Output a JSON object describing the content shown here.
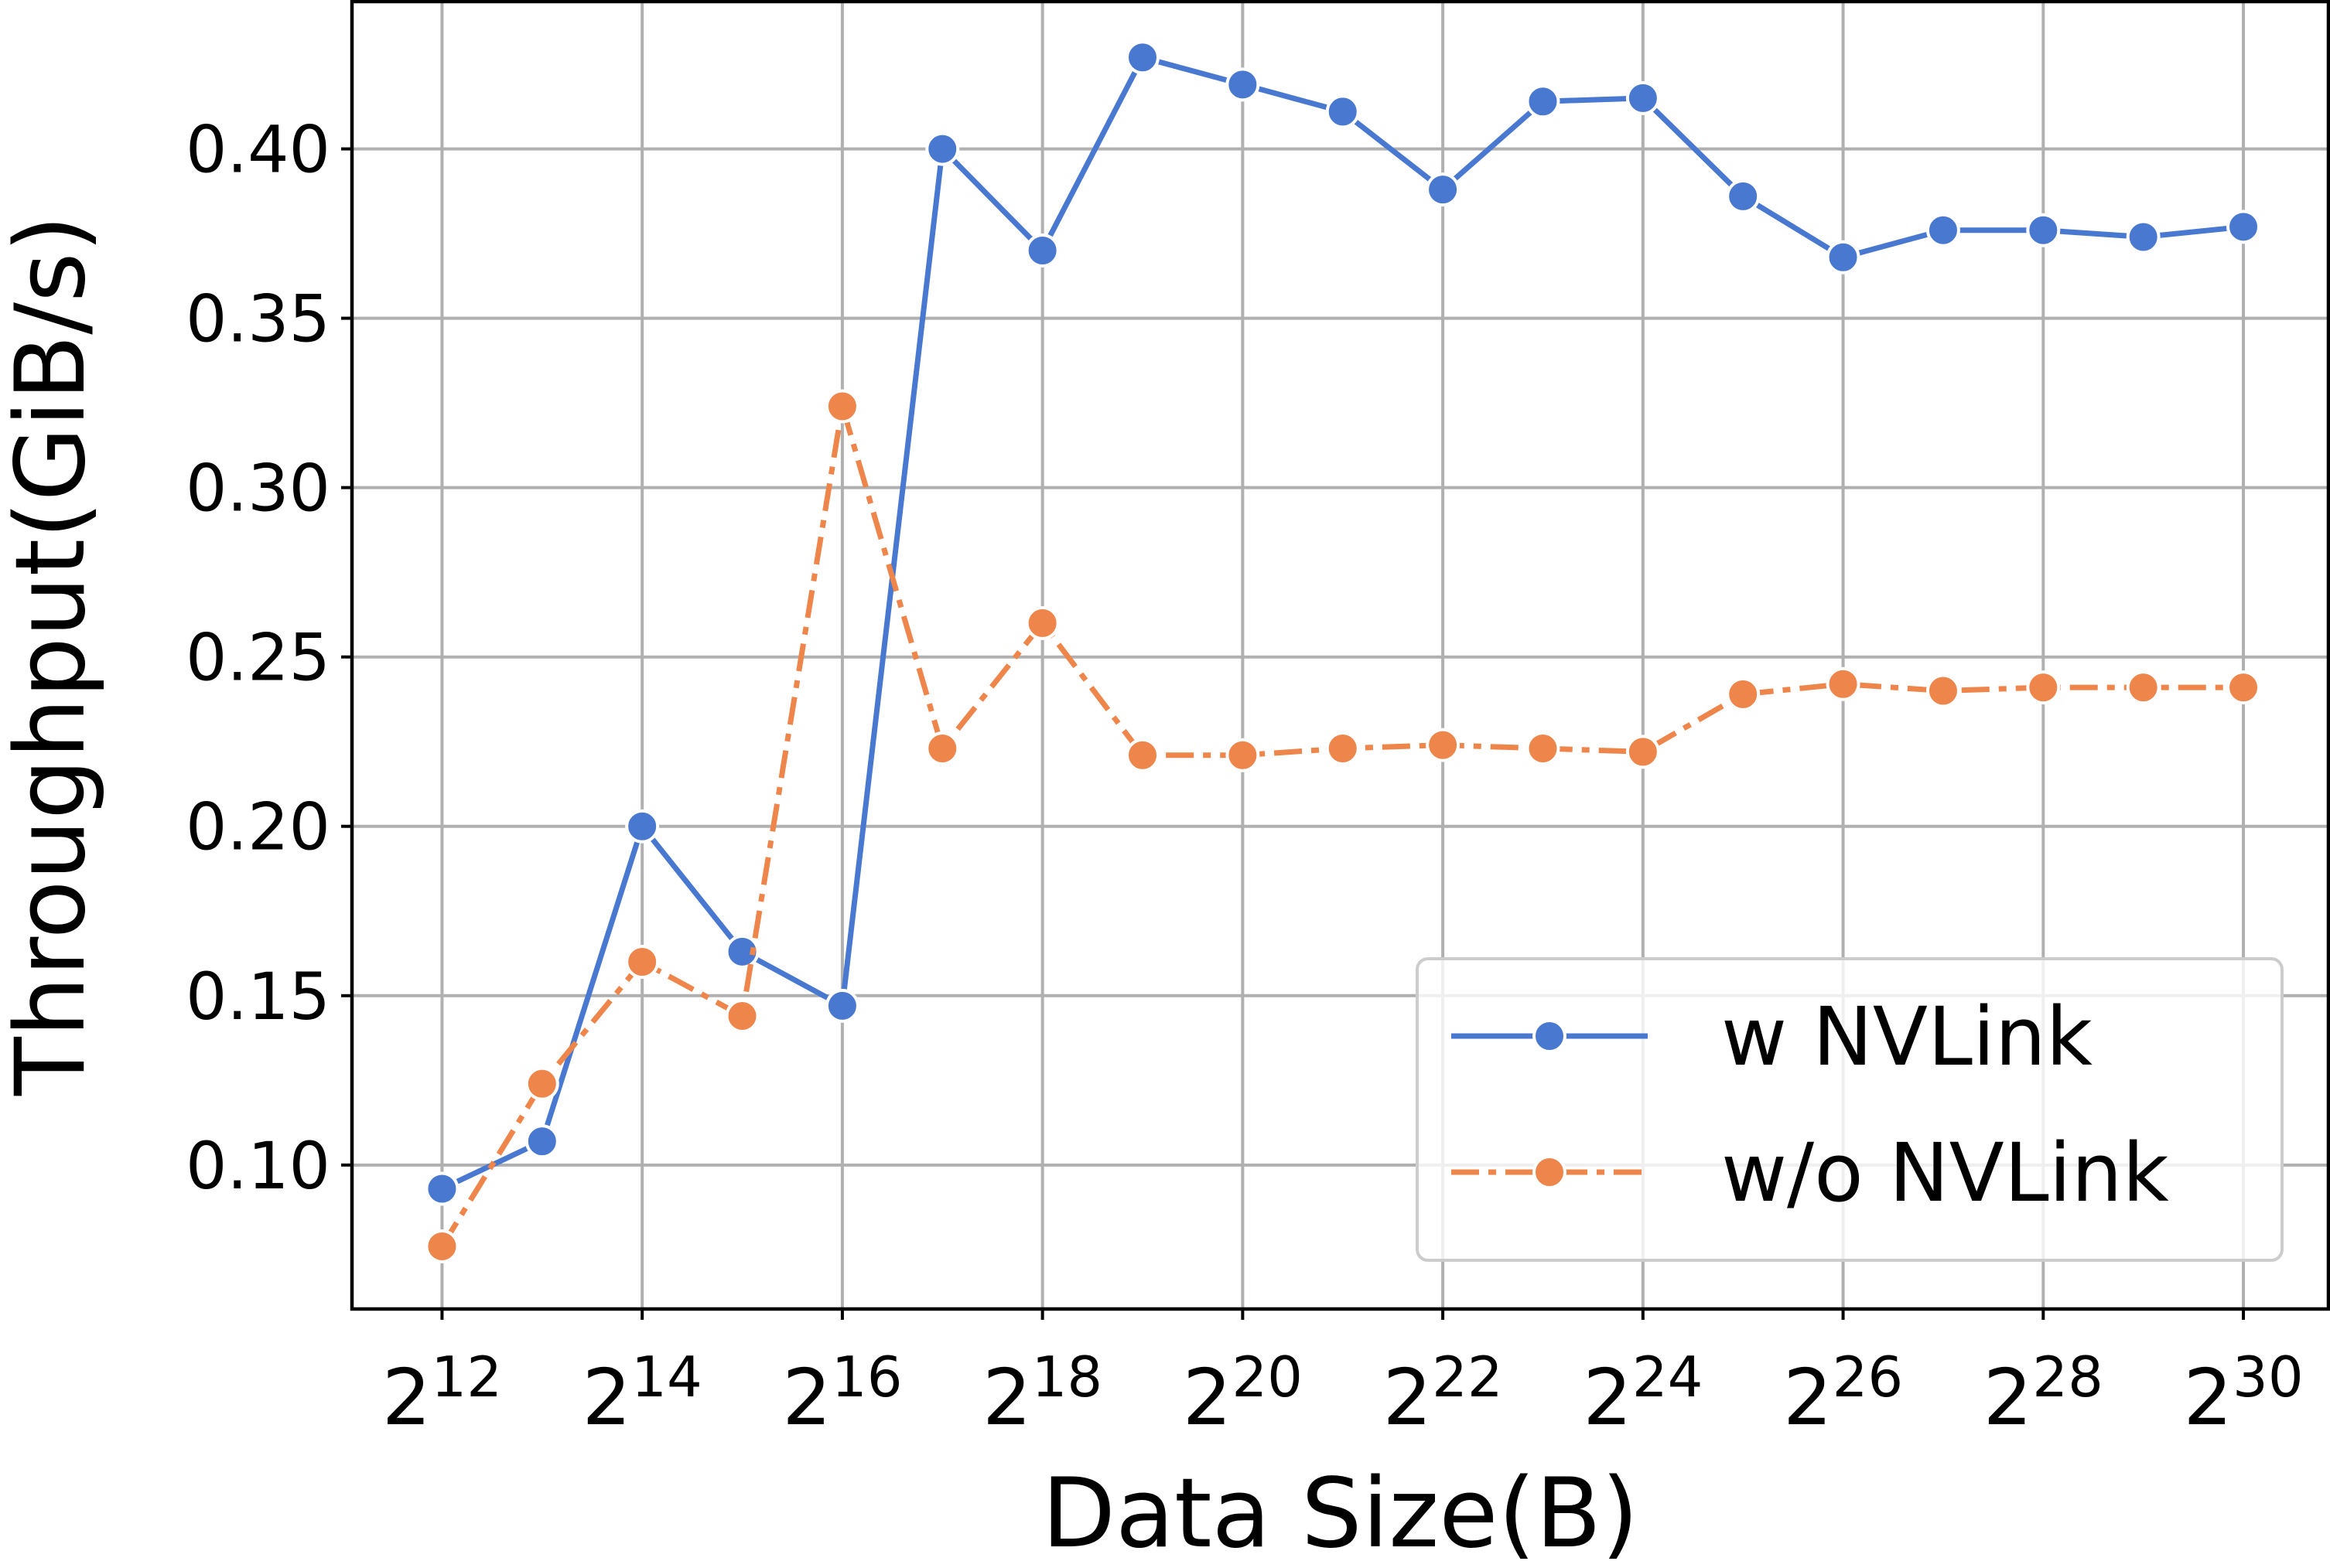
{
  "chart_data": {
    "type": "line",
    "xlabel": "Data Size(B)",
    "ylabel": "Throughput(GiB/s)",
    "x_scale": "log2",
    "x": [
      12,
      13,
      14,
      15,
      16,
      17,
      18,
      19,
      20,
      21,
      22,
      23,
      24,
      25,
      26,
      27,
      28,
      29,
      30
    ],
    "x_ticks": [
      12,
      14,
      16,
      18,
      20,
      22,
      24,
      26,
      28,
      30
    ],
    "x_tick_labels": [
      {
        "base": "2",
        "exp": "12"
      },
      {
        "base": "2",
        "exp": "14"
      },
      {
        "base": "2",
        "exp": "16"
      },
      {
        "base": "2",
        "exp": "18"
      },
      {
        "base": "2",
        "exp": "20"
      },
      {
        "base": "2",
        "exp": "22"
      },
      {
        "base": "2",
        "exp": "24"
      },
      {
        "base": "2",
        "exp": "26"
      },
      {
        "base": "2",
        "exp": "28"
      },
      {
        "base": "2",
        "exp": "30"
      }
    ],
    "xlim": [
      11.1,
      30.85
    ],
    "ylim": [
      0.0575,
      0.4435
    ],
    "y_ticks": [
      0.1,
      0.15,
      0.2,
      0.25,
      0.3,
      0.35,
      0.4
    ],
    "y_tick_labels": [
      "0.10",
      "0.15",
      "0.20",
      "0.25",
      "0.30",
      "0.35",
      "0.40"
    ],
    "grid": true,
    "legend": "lower-right",
    "series": [
      {
        "name": "w NVLink",
        "color": "#4878d0",
        "line_style": "solid",
        "marker": "circle",
        "values": [
          0.093,
          0.107,
          0.2,
          0.163,
          0.147,
          0.4,
          0.37,
          0.427,
          0.419,
          0.411,
          0.388,
          0.414,
          0.415,
          0.386,
          0.368,
          0.376,
          0.376,
          0.374,
          0.377
        ]
      },
      {
        "name": "w/o NVLink",
        "color": "#ee854a",
        "line_style": "dashdot",
        "marker": "circle",
        "values": [
          0.076,
          0.124,
          0.16,
          0.144,
          0.324,
          0.223,
          0.26,
          0.221,
          0.221,
          0.223,
          0.224,
          0.223,
          0.222,
          0.239,
          0.242,
          0.24,
          0.241,
          0.241,
          0.241
        ]
      }
    ]
  }
}
